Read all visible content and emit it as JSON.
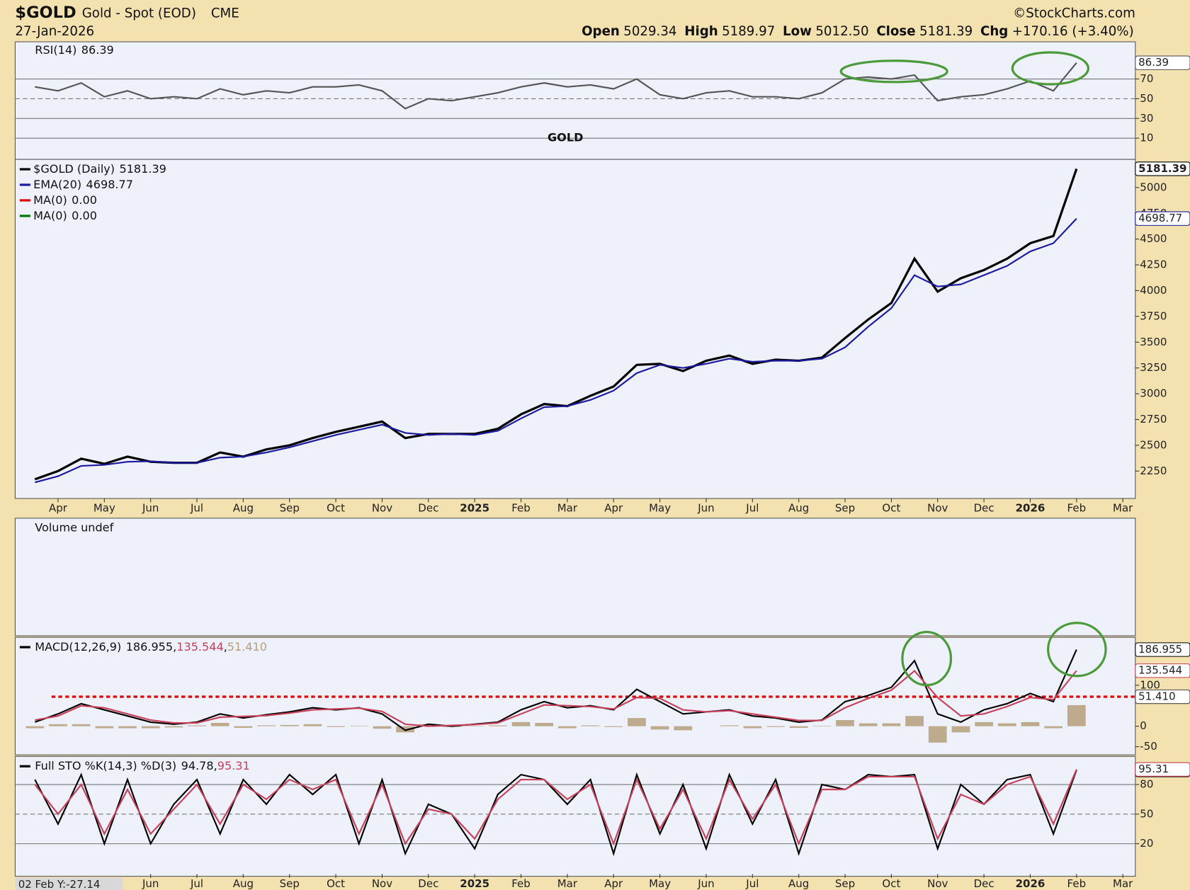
{
  "header": {
    "symbol": "$GOLD",
    "name": "Gold - Spot (EOD)",
    "exchange": "CME",
    "credit": "©StockCharts.com",
    "date": "27-Jan-2026",
    "ohlc": [
      {
        "label": "Open",
        "value": "5029.34"
      },
      {
        "label": "High",
        "value": "5189.97"
      },
      {
        "label": "Low",
        "value": "5012.50"
      },
      {
        "label": "Close",
        "value": "5181.39"
      },
      {
        "label": "Chg",
        "value": "+170.16 (+3.40%)"
      }
    ],
    "status": "02 Feb Y:-27.14"
  },
  "chart_data": [
    {
      "type": "line",
      "ylim": [
        -11.5,
        107.7
      ],
      "yticks": [
        10,
        30,
        50,
        70
      ],
      "grid": true,
      "annotation": "GOLD",
      "series": [
        {
          "name": "RSI(14)",
          "value_label": "86.39",
          "color": "#555555",
          "values": [
            62,
            58,
            66,
            52,
            58,
            50,
            52,
            50,
            60,
            54,
            58,
            56,
            62,
            62,
            64,
            58,
            40,
            50,
            48,
            52,
            56,
            62,
            66,
            62,
            64,
            60,
            70,
            54,
            50,
            56,
            58,
            52,
            52,
            50,
            56,
            70,
            72,
            70,
            74,
            48,
            52,
            54,
            60,
            68,
            58,
            86.39,
            null,
            null
          ]
        }
      ]
    },
    {
      "type": "line",
      "ylim": [
        1984,
        5273
      ],
      "yticks": [
        2250,
        2500,
        2750,
        3000,
        3250,
        3500,
        3750,
        4000,
        4250,
        4500,
        4750,
        5000
      ],
      "grid": false,
      "categories": [
        null,
        "Apr",
        null,
        "May",
        null,
        "Jun",
        null,
        "Jul",
        null,
        "Aug",
        null,
        "Sep",
        null,
        "Oct",
        null,
        "Nov",
        null,
        "Dec",
        null,
        "2025",
        null,
        "Feb",
        null,
        "Mar",
        null,
        "Apr",
        null,
        "May",
        null,
        "Jun",
        null,
        "Jul",
        null,
        "Aug",
        null,
        "Sep",
        null,
        "Oct",
        null,
        "Nov",
        null,
        "Dec",
        null,
        "2026",
        null,
        "Feb",
        null,
        "Mar"
      ],
      "series": [
        {
          "name": "$GOLD (Daily)",
          "value_label": "5181.39",
          "color": "#000000",
          "values": [
            2170,
            2250,
            2370,
            2320,
            2390,
            2340,
            2330,
            2330,
            2430,
            2390,
            2460,
            2500,
            2570,
            2630,
            2680,
            2730,
            2570,
            2610,
            2610,
            2610,
            2660,
            2800,
            2900,
            2880,
            2980,
            3070,
            3280,
            3290,
            3220,
            3320,
            3370,
            3290,
            3330,
            3320,
            3350,
            3540,
            3720,
            3880,
            4310,
            3990,
            4120,
            4200,
            4310,
            4460,
            4530,
            5181.39,
            null,
            null
          ]
        },
        {
          "name": "EMA(20)",
          "value_label": "4698.77",
          "color": "#1a1aa0",
          "values": [
            2140,
            2200,
            2300,
            2310,
            2340,
            2345,
            2330,
            2330,
            2380,
            2390,
            2430,
            2480,
            2540,
            2600,
            2650,
            2700,
            2620,
            2600,
            2610,
            2600,
            2640,
            2760,
            2870,
            2880,
            2940,
            3030,
            3200,
            3280,
            3250,
            3290,
            3340,
            3310,
            3320,
            3320,
            3340,
            3450,
            3650,
            3830,
            4150,
            4040,
            4060,
            4150,
            4240,
            4380,
            4460,
            4698.77,
            null,
            null
          ]
        }
      ],
      "legend_extra": [
        {
          "name": "MA(0)",
          "value_label": "0.00",
          "color": "#dd0000"
        },
        {
          "name": "MA(0)",
          "value_label": "0.00",
          "color": "#007700"
        }
      ]
    },
    {
      "type": "volume",
      "title": "Volume undef"
    },
    {
      "type": "macd",
      "ylim": [
        -70,
        217
      ],
      "yticks": [
        -50,
        0,
        100
      ],
      "grid": false,
      "title": "MACD(12,26,9)",
      "reference_line": {
        "value": 72,
        "color": "#e00000"
      },
      "series": [
        {
          "name": "MACD",
          "value_label": "186.955",
          "color": "#000000",
          "values": [
            10,
            30,
            55,
            40,
            25,
            10,
            5,
            10,
            30,
            20,
            28,
            35,
            45,
            40,
            45,
            30,
            -10,
            5,
            0,
            5,
            10,
            40,
            60,
            45,
            50,
            40,
            90,
            60,
            30,
            35,
            40,
            25,
            20,
            10,
            15,
            60,
            75,
            95,
            160,
            30,
            10,
            40,
            55,
            80,
            60,
            186.955,
            null,
            null
          ]
        },
        {
          "name": "Signal",
          "value_label": "135.544",
          "color": "#c8405a",
          "values": [
            15,
            25,
            50,
            45,
            30,
            15,
            8,
            8,
            22,
            24,
            26,
            32,
            40,
            42,
            44,
            36,
            5,
            0,
            2,
            4,
            8,
            30,
            52,
            50,
            48,
            42,
            70,
            68,
            40,
            35,
            38,
            30,
            22,
            14,
            14,
            45,
            68,
            88,
            135,
            70,
            25,
            30,
            48,
            70,
            65,
            135.544,
            null,
            null
          ]
        },
        {
          "name": "Histogram",
          "value_label": "51.410",
          "color": "#b59f7a",
          "bars": true,
          "values": [
            -5,
            5,
            5,
            -5,
            -5,
            -5,
            -3,
            2,
            8,
            -4,
            2,
            3,
            5,
            -2,
            1,
            -6,
            -15,
            5,
            -2,
            1,
            2,
            10,
            8,
            -5,
            2,
            -2,
            20,
            -8,
            -10,
            0,
            2,
            -5,
            -2,
            -4,
            1,
            15,
            7,
            7,
            25,
            -40,
            -15,
            10,
            7,
            10,
            -5,
            51.41,
            null,
            null
          ]
        }
      ]
    },
    {
      "type": "line",
      "ylim": [
        -13,
        108.5
      ],
      "yticks": [
        20,
        50,
        80
      ],
      "grid": true,
      "title": "Full STO %K(14,3) %D(3)",
      "series": [
        {
          "name": "%K",
          "value_label": "94.78",
          "color": "#000000",
          "values": [
            85,
            40,
            90,
            20,
            85,
            20,
            60,
            85,
            30,
            85,
            60,
            90,
            70,
            90,
            20,
            85,
            10,
            60,
            50,
            15,
            70,
            90,
            85,
            60,
            85,
            10,
            90,
            30,
            80,
            15,
            90,
            40,
            85,
            10,
            80,
            75,
            90,
            88,
            90,
            15,
            80,
            60,
            85,
            90,
            30,
            94.78,
            null,
            null
          ]
        },
        {
          "name": "%D",
          "value_label": "95.31",
          "color": "#c8405a",
          "values": [
            80,
            50,
            80,
            30,
            75,
            30,
            55,
            80,
            40,
            80,
            65,
            85,
            75,
            85,
            30,
            80,
            20,
            55,
            50,
            25,
            65,
            85,
            85,
            65,
            80,
            20,
            85,
            35,
            75,
            25,
            85,
            45,
            80,
            20,
            75,
            75,
            88,
            88,
            88,
            25,
            70,
            60,
            80,
            88,
            40,
            95.31,
            null,
            null
          ]
        }
      ]
    }
  ]
}
